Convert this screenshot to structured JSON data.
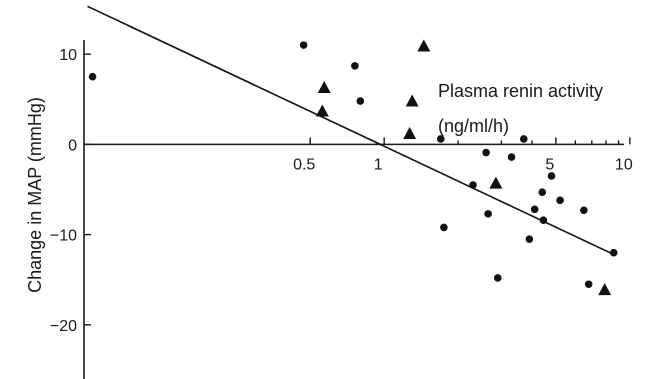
{
  "chart_data": {
    "type": "scatter",
    "title": "",
    "xlabel": "Plasma renin activity",
    "xlabel_unit": "(ng/ml/h)",
    "ylabel": "Change in MAP (mmHg)",
    "x_scale": "log",
    "xlim": [
      0.06,
      11
    ],
    "ylim": [
      -26,
      16
    ],
    "x_ticks": [
      0.5,
      1,
      5,
      10
    ],
    "x_minor_ticks": [
      2,
      3,
      4,
      6,
      7,
      8,
      9
    ],
    "x_tick_labels": [
      "0.5",
      "1",
      "5",
      "10"
    ],
    "y_ticks": [
      10,
      0,
      -10,
      -20
    ],
    "y_tick_labels": [
      "10",
      "0",
      "−10",
      "−20"
    ],
    "grid": false,
    "legend": "none",
    "series": [
      {
        "marker": "circle",
        "points": [
          {
            "x": 0.065,
            "y": 7.5
          },
          {
            "x": 0.47,
            "y": 11
          },
          {
            "x": 0.76,
            "y": 8.7
          },
          {
            "x": 0.8,
            "y": 4.8
          },
          {
            "x": 1.7,
            "y": 0.6
          },
          {
            "x": 1.75,
            "y": -9.2
          },
          {
            "x": 2.3,
            "y": -4.5
          },
          {
            "x": 2.6,
            "y": -0.9
          },
          {
            "x": 2.65,
            "y": -7.7
          },
          {
            "x": 2.9,
            "y": -14.8
          },
          {
            "x": 3.3,
            "y": -1.4
          },
          {
            "x": 3.7,
            "y": 0.6
          },
          {
            "x": 3.9,
            "y": -10.5
          },
          {
            "x": 4.1,
            "y": -7.2
          },
          {
            "x": 4.4,
            "y": -5.3
          },
          {
            "x": 4.45,
            "y": -8.4
          },
          {
            "x": 4.8,
            "y": -3.5
          },
          {
            "x": 5.2,
            "y": -6.2
          },
          {
            "x": 6.5,
            "y": -7.3
          },
          {
            "x": 6.8,
            "y": -15.5
          },
          {
            "x": 8.6,
            "y": -12
          }
        ]
      },
      {
        "marker": "triangle",
        "points": [
          {
            "x": 0.57,
            "y": 6.2
          },
          {
            "x": 0.56,
            "y": 3.6
          },
          {
            "x": 1.3,
            "y": 4.7
          },
          {
            "x": 1.45,
            "y": 10.8
          },
          {
            "x": 1.27,
            "y": 1.1
          },
          {
            "x": 2.85,
            "y": -4.4
          },
          {
            "x": 7.9,
            "y": -16.2
          }
        ]
      }
    ],
    "trendline": {
      "x": [
        0.062,
        8.6
      ],
      "y": [
        15.3,
        -12.2
      ]
    }
  }
}
